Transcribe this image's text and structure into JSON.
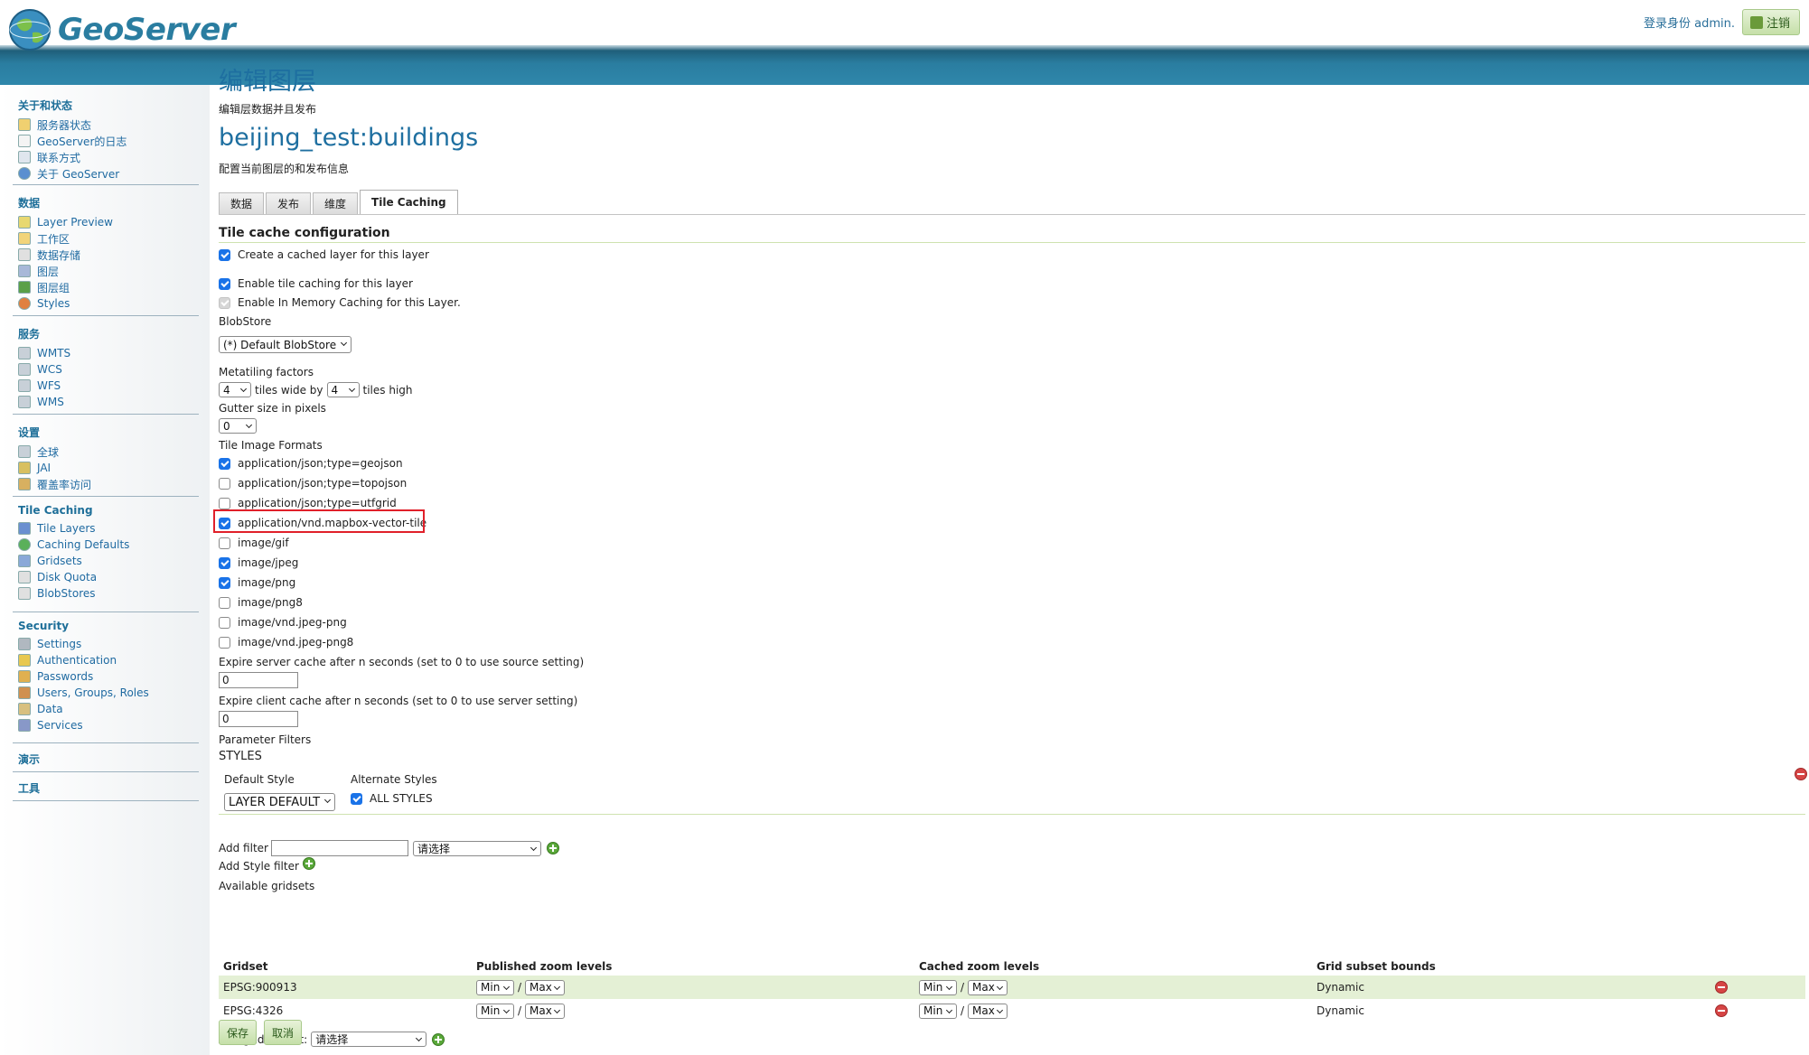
{
  "header": {
    "brand": "GeoServer",
    "logged_in_as": "登录身份 admin.",
    "logout_label": "注销"
  },
  "sidebar": {
    "sections": [
      {
        "title": "关于和状态",
        "items": [
          {
            "label": "服务器状态",
            "icon": "server-status-icon"
          },
          {
            "label": "GeoServer的日志",
            "icon": "log-icon"
          },
          {
            "label": "联系方式",
            "icon": "contact-icon"
          },
          {
            "label": "关于 GeoServer",
            "icon": "about-icon"
          }
        ]
      },
      {
        "title": "数据",
        "items": [
          {
            "label": "Layer Preview",
            "icon": "layer-preview-icon"
          },
          {
            "label": "工作区",
            "icon": "workspace-icon"
          },
          {
            "label": "数据存储",
            "icon": "datastore-icon"
          },
          {
            "label": "图层",
            "icon": "layer-icon"
          },
          {
            "label": "图层组",
            "icon": "layergroup-icon"
          },
          {
            "label": "Styles",
            "icon": "styles-icon"
          }
        ]
      },
      {
        "title": "服务",
        "items": [
          {
            "label": "WMTS",
            "icon": "service-icon"
          },
          {
            "label": "WCS",
            "icon": "service-icon"
          },
          {
            "label": "WFS",
            "icon": "service-icon"
          },
          {
            "label": "WMS",
            "icon": "service-icon"
          }
        ]
      },
      {
        "title": "设置",
        "items": [
          {
            "label": "全球",
            "icon": "global-icon"
          },
          {
            "label": "JAI",
            "icon": "jai-icon"
          },
          {
            "label": "覆盖率访问",
            "icon": "coverage-icon"
          }
        ]
      },
      {
        "title": "Tile Caching",
        "items": [
          {
            "label": "Tile Layers",
            "icon": "tile-layers-icon"
          },
          {
            "label": "Caching Defaults",
            "icon": "caching-defaults-icon"
          },
          {
            "label": "Gridsets",
            "icon": "gridsets-icon"
          },
          {
            "label": "Disk Quota",
            "icon": "disk-quota-icon"
          },
          {
            "label": "BlobStores",
            "icon": "blobstores-icon"
          }
        ]
      },
      {
        "title": "Security",
        "items": [
          {
            "label": "Settings",
            "icon": "settings-icon"
          },
          {
            "label": "Authentication",
            "icon": "authentication-icon"
          },
          {
            "label": "Passwords",
            "icon": "passwords-icon"
          },
          {
            "label": "Users, Groups, Roles",
            "icon": "users-icon"
          },
          {
            "label": "Data",
            "icon": "data-security-icon"
          },
          {
            "label": "Services",
            "icon": "services-security-icon"
          }
        ]
      },
      {
        "title": "演示",
        "items": []
      },
      {
        "title": "工具",
        "items": []
      }
    ]
  },
  "main": {
    "page_title": "编辑图层",
    "page_description": "编辑层数据并且发布",
    "layer_name": "beijing_test:buildings",
    "layer_description": "配置当前图层的和发布信息",
    "tabs": [
      "数据",
      "发布",
      "维度",
      "Tile Caching"
    ],
    "active_tab": "Tile Caching",
    "section_title": "Tile cache configuration",
    "create_cached_layer": "Create a cached layer for this layer",
    "enable_tile_caching": "Enable tile caching for this layer",
    "enable_in_memory": "Enable In Memory Caching for this Layer.",
    "blobstore_label": "BlobStore",
    "blobstore_value": "(*) Default BlobStore",
    "metatiling_label": "Metatiling factors",
    "metatiling_wide": "4",
    "metatiling_wide_text": "tiles wide by",
    "metatiling_high": "4",
    "metatiling_high_text": "tiles high",
    "gutter_label": "Gutter size in pixels",
    "gutter_value": "0",
    "formats_label": "Tile Image Formats",
    "formats": [
      {
        "label": "application/json;type=geojson",
        "checked": true
      },
      {
        "label": "application/json;type=topojson",
        "checked": false
      },
      {
        "label": "application/json;type=utfgrid",
        "checked": false
      },
      {
        "label": "application/vnd.mapbox-vector-tile",
        "checked": true
      },
      {
        "label": "image/gif",
        "checked": false
      },
      {
        "label": "image/jpeg",
        "checked": true
      },
      {
        "label": "image/png",
        "checked": true
      },
      {
        "label": "image/png8",
        "checked": false
      },
      {
        "label": "image/vnd.jpeg-png",
        "checked": false
      },
      {
        "label": "image/vnd.jpeg-png8",
        "checked": false
      }
    ],
    "expire_server_label": "Expire server cache after n seconds (set to 0 to use source setting)",
    "expire_server_value": "0",
    "expire_client_label": "Expire client cache after n seconds (set to 0 to use server setting)",
    "expire_client_value": "0",
    "parameter_filters_label": "Parameter Filters",
    "styles_label": "STYLES",
    "default_style_label": "Default Style",
    "default_style_value": "LAYER DEFAULT",
    "alternate_styles_label": "Alternate Styles",
    "all_styles_label": "ALL STYLES",
    "add_filter_label": "Add filter",
    "add_filter_input": "",
    "add_filter_select": "请选择",
    "add_style_filter_label": "Add Style filter",
    "available_gridsets_label": "Available gridsets",
    "grid_headers": [
      "Gridset",
      "Published zoom levels",
      "Cached zoom levels",
      "Grid subset bounds"
    ],
    "gridsets": [
      {
        "name": "EPSG:900913",
        "pub_min": "Min",
        "pub_max": "Max",
        "cache_min": "Min",
        "cache_max": "Max",
        "bounds": "Dynamic"
      },
      {
        "name": "EPSG:4326",
        "pub_min": "Min",
        "pub_max": "Max",
        "cache_min": "Min",
        "cache_max": "Max",
        "bounds": "Dynamic"
      }
    ],
    "add_grid_subset_label": "Add grid subset:",
    "add_grid_subset_select": "请选择",
    "save_label": "保存",
    "cancel_label": "取消"
  }
}
